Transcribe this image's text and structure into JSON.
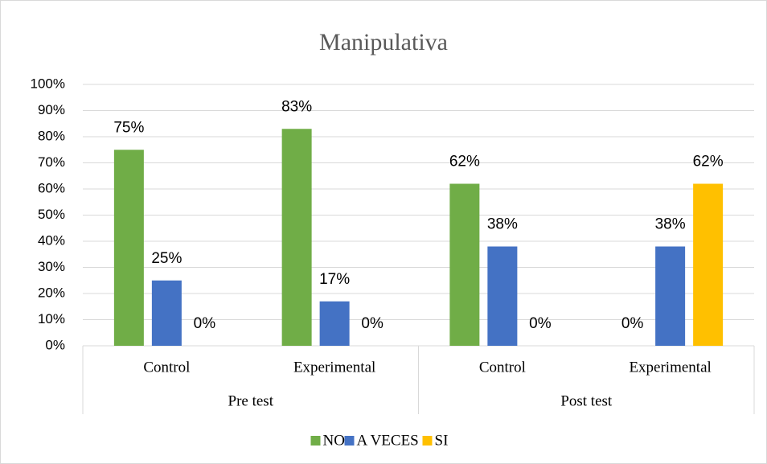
{
  "chart_data": {
    "type": "bar",
    "title": "Manipulativa",
    "categories": [
      "Control",
      "Experimental",
      "Control",
      "Experimental"
    ],
    "groups": [
      "Pre test",
      "Post test"
    ],
    "series": [
      {
        "name": "NO",
        "color": "#70ad47",
        "values": [
          75,
          83,
          62,
          0
        ],
        "value_labels": [
          "75%",
          "83%",
          "62%",
          "0%"
        ]
      },
      {
        "name": "A VECES",
        "color": "#4472c4",
        "values": [
          25,
          17,
          38,
          38
        ],
        "value_labels": [
          "25%",
          "17%",
          "38%",
          "38%"
        ]
      },
      {
        "name": "SI",
        "color": "#ffc000",
        "values": [
          0,
          0,
          0,
          62
        ],
        "value_labels": [
          "0%",
          "0%",
          "0%",
          "62%"
        ]
      }
    ],
    "ylim": [
      0,
      100
    ],
    "yticks": [
      {
        "value": 0,
        "label": "0%"
      },
      {
        "value": 10,
        "label": "10%"
      },
      {
        "value": 20,
        "label": "20%"
      },
      {
        "value": 30,
        "label": "30%"
      },
      {
        "value": 40,
        "label": "40%"
      },
      {
        "value": 50,
        "label": "50%"
      },
      {
        "value": 60,
        "label": "60%"
      },
      {
        "value": 70,
        "label": "70%"
      },
      {
        "value": 80,
        "label": "80%"
      },
      {
        "value": 90,
        "label": "90%"
      },
      {
        "value": 100,
        "label": "100%"
      }
    ],
    "grid": true,
    "legend": "bottom"
  }
}
